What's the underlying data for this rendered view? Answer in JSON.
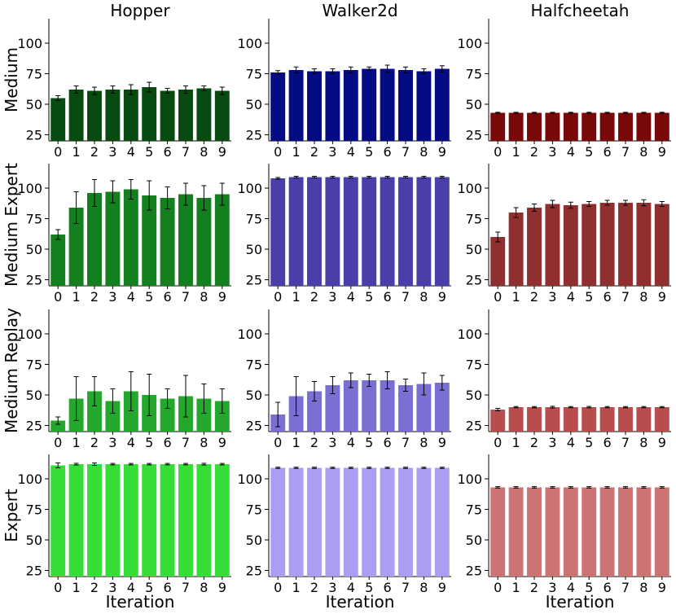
{
  "chart_data": {
    "type": "bar",
    "columns": [
      "Hopper",
      "Walker2d",
      "Halfcheetah"
    ],
    "rows": [
      "Medium",
      "Medium Expert",
      "Medium Replay",
      "Expert"
    ],
    "xlabel": "Iteration",
    "categories": [
      "0",
      "1",
      "2",
      "3",
      "4",
      "5",
      "6",
      "7",
      "8",
      "9"
    ],
    "ylim": [
      20,
      120
    ],
    "yticks": [
      25,
      50,
      75,
      100
    ],
    "colors": {
      "Hopper": [
        "#074b10",
        "#137f1e",
        "#23a82d",
        "#36dd36"
      ],
      "Walker2d": [
        "#050b82",
        "#4a3eaa",
        "#7a6fd2",
        "#a99ef2"
      ],
      "Halfcheetah": [
        "#790909",
        "#8f2f2f",
        "#b84d4d",
        "#cc7474"
      ]
    },
    "panels": [
      {
        "env": "Hopper",
        "dataset": "Medium",
        "values": [
          55,
          62,
          61,
          62,
          62,
          64,
          61,
          62,
          63,
          61
        ],
        "errors": [
          2,
          3,
          3,
          3,
          4,
          4,
          2,
          3,
          2,
          3
        ]
      },
      {
        "env": "Walker2d",
        "dataset": "Medium",
        "values": [
          76,
          78,
          77,
          77,
          78,
          79,
          79,
          78,
          77,
          79
        ],
        "errors": [
          1.5,
          2.5,
          2,
          2,
          2.5,
          1.5,
          3,
          2.5,
          2,
          2.5
        ]
      },
      {
        "env": "Halfcheetah",
        "dataset": "Medium",
        "values": [
          43,
          43,
          43,
          43,
          43,
          43,
          43,
          43,
          43,
          43
        ],
        "errors": [
          0.4,
          0.4,
          0.4,
          0.4,
          0.4,
          0.4,
          0.4,
          0.4,
          0.4,
          0.4
        ]
      },
      {
        "env": "Hopper",
        "dataset": "Medium Expert",
        "values": [
          62,
          84,
          96,
          97,
          99,
          94,
          92,
          95,
          92,
          95
        ],
        "errors": [
          4,
          13,
          11,
          9,
          8,
          12,
          9,
          9,
          10,
          9
        ]
      },
      {
        "env": "Walker2d",
        "dataset": "Medium Expert",
        "values": [
          108,
          109,
          109,
          109,
          109,
          109,
          109,
          109,
          109,
          109
        ],
        "errors": [
          0.7,
          0.7,
          0.7,
          0.7,
          0.7,
          0.7,
          0.7,
          0.7,
          0.7,
          0.7
        ]
      },
      {
        "env": "Halfcheetah",
        "dataset": "Medium Expert",
        "values": [
          60,
          80,
          84,
          87,
          86,
          87,
          88,
          88,
          88,
          87
        ],
        "errors": [
          4,
          4,
          3,
          3,
          2.5,
          2,
          2,
          2,
          2.5,
          2
        ]
      },
      {
        "env": "Hopper",
        "dataset": "Medium Replay",
        "values": [
          29,
          47,
          53,
          45,
          53,
          50,
          47,
          49,
          47,
          45
        ],
        "errors": [
          3,
          18,
          12,
          10,
          16,
          17,
          8,
          17,
          12,
          10
        ]
      },
      {
        "env": "Walker2d",
        "dataset": "Medium Replay",
        "values": [
          34,
          49,
          53,
          58,
          62,
          62,
          62,
          58,
          59,
          60
        ],
        "errors": [
          10,
          16,
          8,
          7,
          6,
          5,
          7,
          5,
          9,
          6
        ]
      },
      {
        "env": "Halfcheetah",
        "dataset": "Medium Replay",
        "values": [
          38,
          40,
          40,
          40,
          40,
          40,
          40,
          40,
          40,
          40
        ],
        "errors": [
          1,
          0.5,
          0.5,
          0.7,
          0.5,
          0.6,
          0.5,
          0.5,
          0.5,
          0.5
        ]
      },
      {
        "env": "Hopper",
        "dataset": "Expert",
        "values": [
          111,
          112,
          112,
          112,
          112,
          112,
          112,
          112,
          112,
          112
        ],
        "errors": [
          2,
          0.7,
          1,
          0.6,
          0.6,
          0.6,
          0.6,
          0.6,
          0.7,
          0.6
        ]
      },
      {
        "env": "Walker2d",
        "dataset": "Expert",
        "values": [
          109,
          109,
          109,
          109,
          109,
          109,
          109,
          109,
          109,
          109
        ],
        "errors": [
          0.5,
          0.5,
          0.5,
          0.5,
          0.5,
          0.5,
          0.5,
          0.5,
          0.5,
          0.5
        ]
      },
      {
        "env": "Halfcheetah",
        "dataset": "Expert",
        "values": [
          93,
          93,
          93,
          93,
          93,
          93,
          93,
          93,
          93,
          93
        ],
        "errors": [
          0.6,
          0.6,
          0.6,
          0.6,
          0.6,
          0.6,
          0.6,
          0.6,
          0.6,
          0.6
        ]
      }
    ]
  }
}
